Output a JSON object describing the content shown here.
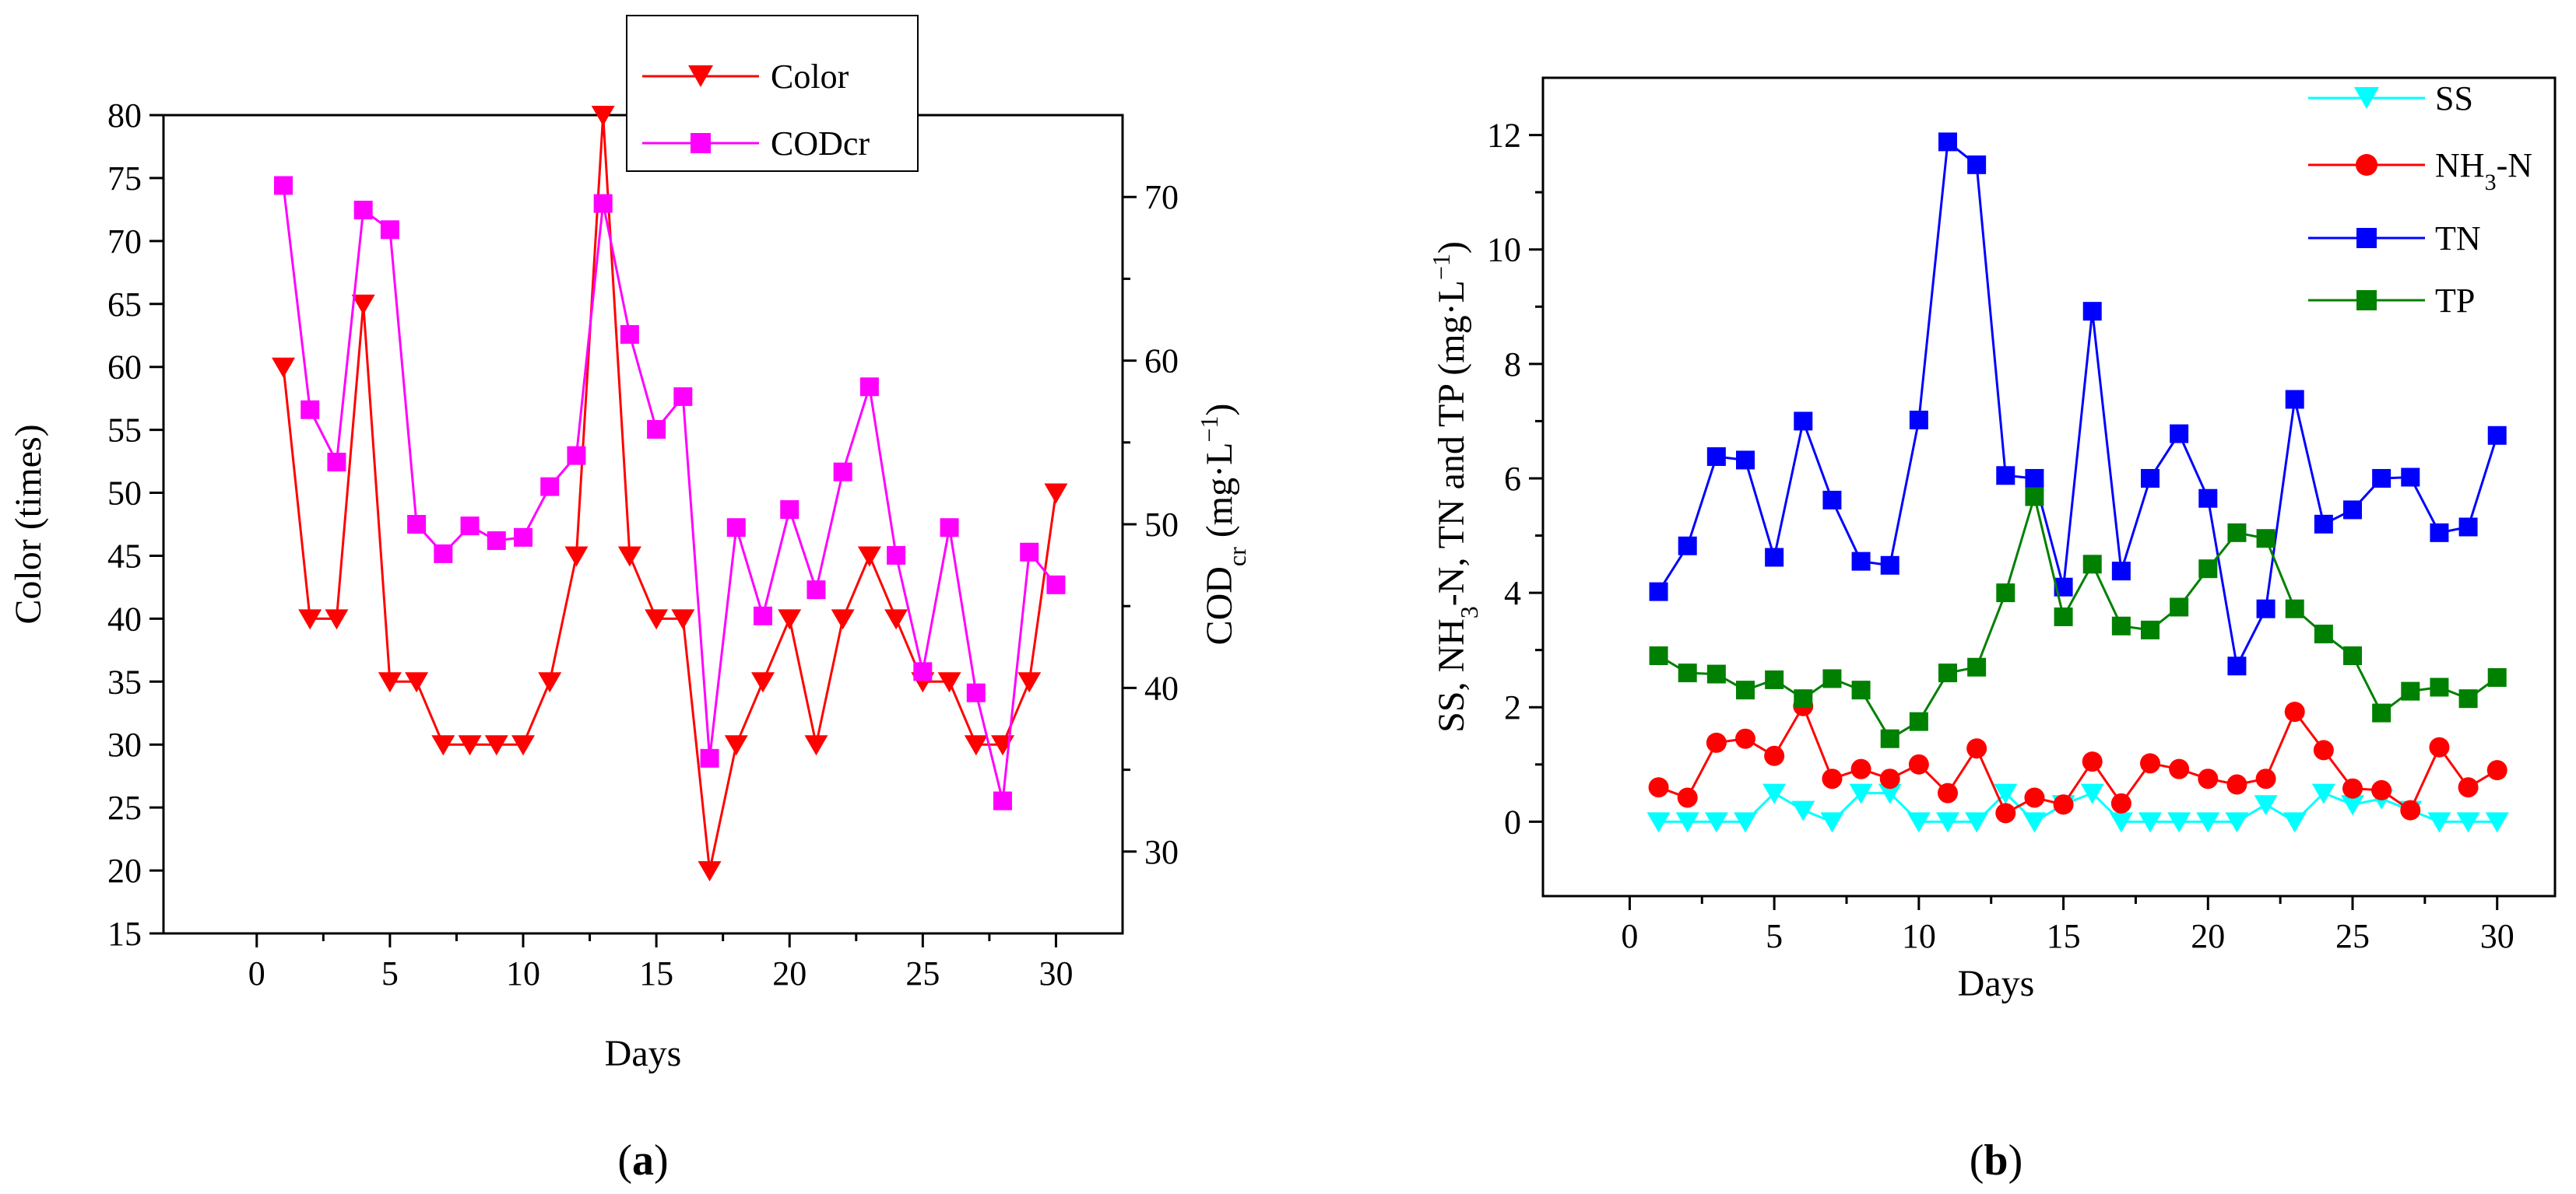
{
  "figure": {
    "panel_a_label": "a",
    "panel_b_label": "b"
  },
  "chart_data": [
    {
      "type": "line",
      "panel": "a",
      "xlabel": "Days",
      "ylabel": "Color (times)",
      "y2label_main": "COD",
      "y2label_sub": "cr",
      "y2label_unit": " (mg·L",
      "y2label_sup": "−1",
      "y2label_close": ")",
      "xlim": [
        -3.5,
        32.5
      ],
      "ylim": [
        15,
        80
      ],
      "y2lim": [
        25,
        75
      ],
      "xticks": [
        0,
        5,
        10,
        15,
        20,
        25,
        30
      ],
      "yticks": [
        15,
        20,
        25,
        30,
        35,
        40,
        45,
        50,
        55,
        60,
        65,
        70,
        75,
        80
      ],
      "y2ticks": [
        30,
        40,
        50,
        60,
        70
      ],
      "x": [
        1,
        2,
        3,
        4,
        5,
        6,
        7,
        8,
        9,
        10,
        11,
        12,
        13,
        14,
        15,
        16,
        17,
        18,
        19,
        20,
        21,
        22,
        23,
        24,
        25,
        26,
        27,
        28,
        29,
        30
      ],
      "legend_position": "top-center",
      "series": [
        {
          "name": "Color",
          "axis": "left",
          "color": "#ff0000",
          "marker": "triangle-down",
          "values": [
            60,
            40,
            40,
            65,
            35,
            35,
            30,
            30,
            30,
            30,
            35,
            45,
            80,
            45,
            40,
            40,
            20,
            30,
            35,
            40,
            30,
            40,
            45,
            40,
            35,
            35,
            30,
            30,
            35,
            50
          ]
        },
        {
          "name": "CODcr",
          "axis": "right",
          "color": "#ff00ff",
          "marker": "square",
          "values": [
            70.7,
            57,
            53.8,
            69.2,
            68,
            50,
            48.2,
            49.9,
            49,
            49.2,
            52.3,
            54.2,
            69.6,
            61.6,
            55.8,
            57.8,
            35.7,
            49.8,
            44.4,
            50.9,
            46,
            53.2,
            58.4,
            48.1,
            41,
            49.8,
            39.7,
            33.1,
            48.3,
            46.3
          ]
        }
      ]
    },
    {
      "type": "line",
      "panel": "b",
      "xlabel": "Days",
      "ylabel_part1": "SS, NH",
      "ylabel_sub": "3",
      "ylabel_part2": "-N, TN and TP (mg·L",
      "ylabel_sup": "−1",
      "ylabel_close": ")",
      "xlim": [
        -3,
        32
      ],
      "ylim": [
        -1.3,
        13
      ],
      "xticks": [
        0,
        5,
        10,
        15,
        20,
        25,
        30
      ],
      "yticks": [
        0,
        2,
        4,
        6,
        8,
        10,
        12
      ],
      "x": [
        1,
        2,
        3,
        4,
        5,
        6,
        7,
        8,
        9,
        10,
        11,
        12,
        13,
        14,
        15,
        16,
        17,
        18,
        19,
        20,
        21,
        22,
        23,
        24,
        25,
        26,
        27,
        28,
        29,
        30
      ],
      "legend_position": "top-right",
      "series": [
        {
          "name": "SS",
          "color": "#00ffff",
          "marker": "triangle-down",
          "values": [
            0,
            0,
            0,
            0,
            0.5,
            0.2,
            0,
            0.5,
            0.5,
            0,
            0,
            0,
            0.5,
            0,
            0.3,
            0.5,
            0,
            0,
            0,
            0,
            0,
            0.3,
            0,
            0.5,
            0.3,
            0.4,
            0.2,
            0,
            0,
            0
          ]
        },
        {
          "name_main": "NH",
          "name_sub": "3",
          "name_tail": "-N",
          "color": "#ff0000",
          "marker": "circle",
          "values": [
            0.6,
            0.42,
            1.38,
            1.45,
            1.15,
            2.02,
            0.75,
            0.92,
            0.75,
            1.0,
            0.5,
            1.28,
            0.15,
            0.42,
            0.3,
            1.05,
            0.32,
            1.02,
            0.92,
            0.75,
            0.65,
            0.75,
            1.92,
            1.25,
            0.58,
            0.55,
            0.2,
            1.3,
            0.6,
            0.9
          ]
        },
        {
          "name": "TN",
          "color": "#0000ff",
          "marker": "square",
          "values": [
            4.02,
            4.82,
            6.38,
            6.32,
            4.62,
            7.0,
            5.62,
            4.55,
            4.48,
            7.02,
            11.88,
            11.48,
            6.05,
            6.0,
            4.1,
            8.92,
            4.38,
            6.0,
            6.78,
            5.65,
            2.72,
            3.72,
            7.38,
            5.2,
            5.45,
            6.0,
            6.02,
            5.05,
            5.15,
            6.75
          ]
        },
        {
          "name": "TP",
          "color": "#008000",
          "marker": "square",
          "values": [
            2.9,
            2.6,
            2.58,
            2.3,
            2.48,
            2.15,
            2.5,
            2.3,
            1.45,
            1.75,
            2.6,
            2.7,
            4.0,
            5.68,
            3.58,
            4.5,
            3.42,
            3.35,
            3.75,
            4.42,
            5.05,
            4.95,
            3.72,
            3.28,
            2.9,
            1.9,
            2.28,
            2.35,
            2.15,
            2.52
          ]
        }
      ]
    }
  ]
}
